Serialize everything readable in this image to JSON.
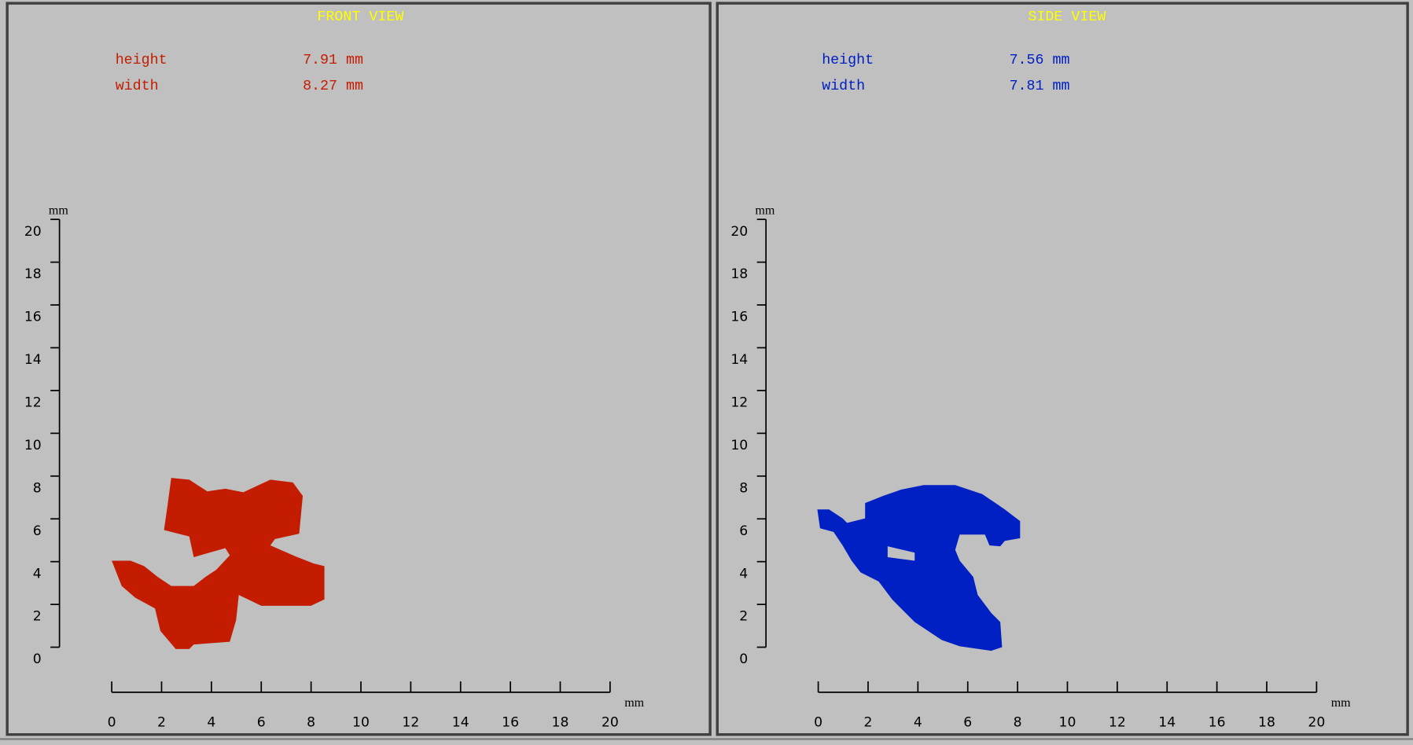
{
  "panels": [
    {
      "title": "FRONT VIEW",
      "measurements": [
        {
          "label": "height",
          "value": "7.91 mm"
        },
        {
          "label": "width",
          "value": "8.27 mm"
        }
      ],
      "y_axis": {
        "unit": "mm",
        "ticks": [
          0,
          2,
          4,
          6,
          8,
          10,
          12,
          14,
          16,
          18,
          20
        ]
      },
      "x_axis": {
        "unit": "mm",
        "ticks": [
          0,
          2,
          4,
          6,
          8,
          10,
          12,
          14,
          16,
          18,
          20
        ]
      }
    },
    {
      "title": "SIDE VIEW",
      "measurements": [
        {
          "label": "height",
          "value": "7.56 mm"
        },
        {
          "label": "width",
          "value": "7.81 mm"
        }
      ],
      "y_axis": {
        "unit": "mm",
        "ticks": [
          0,
          2,
          4,
          6,
          8,
          10,
          12,
          14,
          16,
          18,
          20
        ]
      },
      "x_axis": {
        "unit": "mm",
        "ticks": [
          0,
          2,
          4,
          6,
          8,
          10,
          12,
          14,
          16,
          18,
          20
        ]
      }
    }
  ]
}
